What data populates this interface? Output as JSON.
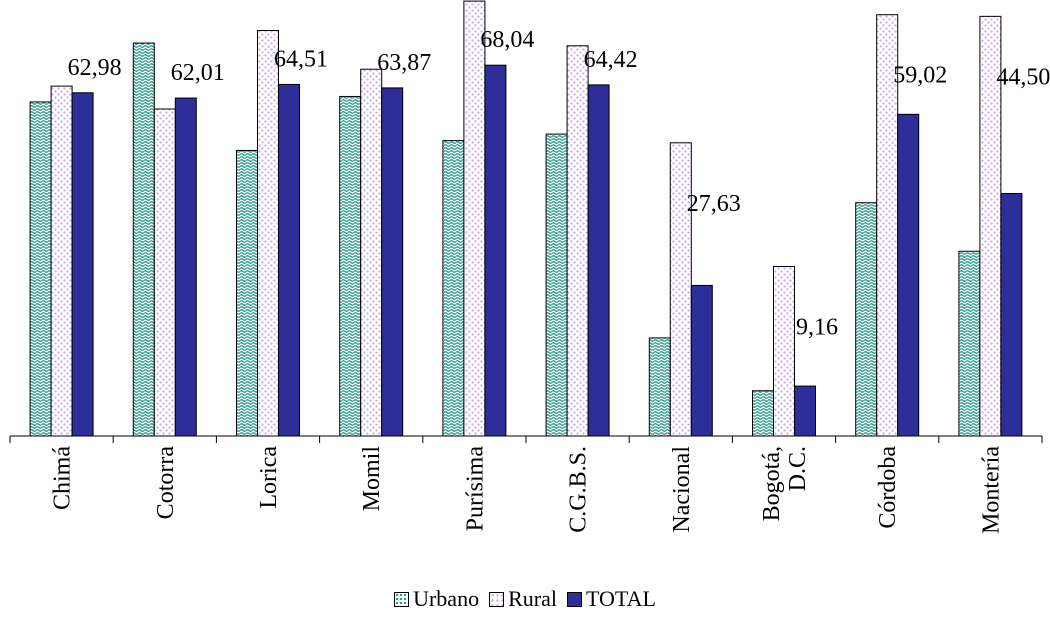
{
  "chart_data": {
    "type": "bar",
    "title": "",
    "xlabel": "",
    "ylabel": "",
    "ylim": [
      0,
      80
    ],
    "grid": false,
    "legend": "bottom",
    "categories": [
      "Chimá",
      "Cotorra",
      "Lorica",
      "Momil",
      "Purísima",
      "C.G.B.S.",
      "Nacional",
      "Bogotá, D.C.",
      "Córdoba",
      "Montería"
    ],
    "series": [
      {
        "name": "Urbano",
        "color": "#2a9d8f",
        "pattern": "wave-dots",
        "values": [
          61.3,
          72.1,
          52.4,
          62.3,
          54.2,
          55.4,
          18.0,
          8.3,
          42.8,
          33.9
        ]
      },
      {
        "name": "Rural",
        "color": "#c9a6f2",
        "pattern": "dots",
        "values": [
          64.2,
          60.0,
          74.4,
          67.3,
          79.8,
          71.6,
          53.8,
          31.1,
          77.3,
          77.0
        ]
      },
      {
        "name": "TOTAL",
        "color": "#2e2e9a",
        "pattern": "solid",
        "values": [
          62.98,
          62.01,
          64.51,
          63.87,
          68.04,
          64.42,
          27.63,
          9.16,
          59.02,
          44.5
        ]
      }
    ],
    "data_labels": [
      "62,98",
      "62,01",
      "64,51",
      "63,87",
      "68,04",
      "64,42",
      "27,63",
      "9,16",
      "59,02",
      "44,50"
    ],
    "data_label_series": "TOTAL"
  }
}
